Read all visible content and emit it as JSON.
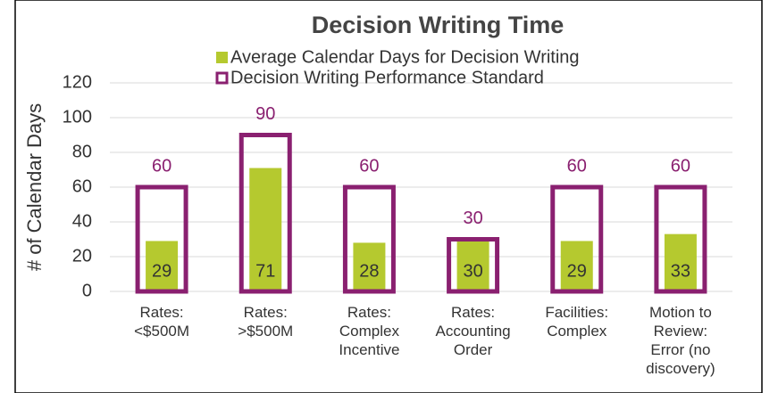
{
  "chart_data": {
    "type": "bar",
    "title": "Decision Writing Time",
    "y_label": "# of Calendar Days",
    "categories": [
      [
        "Rates:",
        "<$500M"
      ],
      [
        "Rates:",
        ">$500M"
      ],
      [
        "Rates:",
        "Complex",
        "Incentive"
      ],
      [
        "Rates:",
        "Accounting",
        "Order"
      ],
      [
        "Facilities:",
        "Complex"
      ],
      [
        "Motion to",
        "Review:",
        "Error (no",
        "discovery)"
      ]
    ],
    "series": [
      {
        "name": "Average Calendar Days for Decision Writing",
        "color": "#b5c92f",
        "style": "filled",
        "values": [
          29,
          71,
          28,
          30,
          29,
          33
        ]
      },
      {
        "name": "Decision Writing Performance Standard",
        "color": "#8a2070",
        "style": "outline",
        "values": [
          60,
          90,
          60,
          30,
          60,
          60
        ]
      }
    ],
    "ylim": [
      0,
      120
    ],
    "yticks": [
      0,
      20,
      40,
      60,
      80,
      100,
      120
    ],
    "grid": true,
    "legend": "top"
  }
}
